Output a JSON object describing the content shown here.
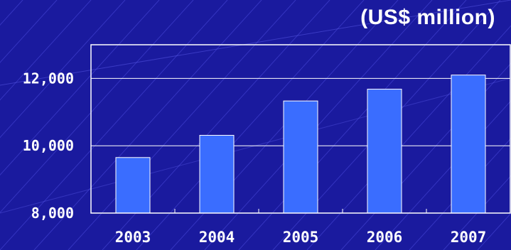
{
  "unit_label": "(US$ million)",
  "colors": {
    "background": "#1a1a9e",
    "bar_fill": "#3a6dff",
    "bar_stroke": "#ffffff",
    "axis_and_grid": "#ffffff",
    "text": "#ffffff"
  },
  "chart_data": {
    "type": "bar",
    "title": "",
    "xlabel": "",
    "ylabel": "",
    "categories": [
      "2003",
      "2004",
      "2005",
      "2006",
      "2007"
    ],
    "values": [
      9650,
      10310,
      11330,
      11680,
      12100
    ],
    "ylim": [
      8000,
      13000
    ],
    "y_ticks": [
      8000,
      10000,
      12000
    ],
    "y_tick_labels": [
      "8,000",
      "10,000",
      "12,000"
    ],
    "grid": true,
    "legend": "none"
  }
}
